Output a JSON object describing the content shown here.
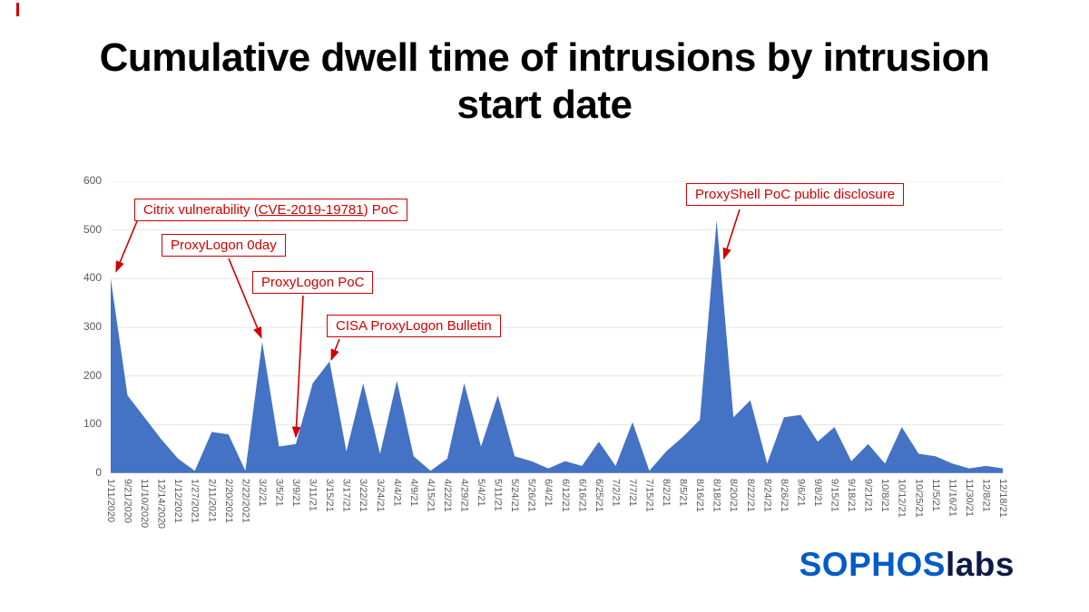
{
  "page": {
    "title": "Cumulative dwell time of intrusions by intrusion start date"
  },
  "logo": {
    "sophos": "SOPHOS",
    "labs": "labs"
  },
  "colors": {
    "accent_red": "#d00000",
    "area_blue": "#4472c4",
    "axis_text": "#595959",
    "sophos_blue": "#005bc8",
    "labs_navy": "#0d1b4a"
  },
  "chart_data": {
    "type": "area",
    "title": "Cumulative dwell time of intrusions by intrusion start date",
    "xlabel": "",
    "ylabel": "",
    "ylim": [
      0,
      600
    ],
    "y_ticks": [
      0,
      100,
      200,
      300,
      400,
      500,
      600
    ],
    "grid": true,
    "legend": "none",
    "series_color": "#4472c4",
    "categories": [
      "1/11/2020",
      "9/21/2020",
      "11/10/2020",
      "12/14/2020",
      "1/12/2021",
      "1/27/2021",
      "2/11/2021",
      "2/20/2021",
      "2/22/2021",
      "3/2/21",
      "3/5/21",
      "3/9/21",
      "3/11/21",
      "3/15/21",
      "3/17/21",
      "3/22/21",
      "3/24/21",
      "4/4/21",
      "4/9/21",
      "4/15/21",
      "4/22/21",
      "4/29/21",
      "5/4/21",
      "5/11/21",
      "5/24/21",
      "5/26/21",
      "6/4/21",
      "6/12/21",
      "6/16/21",
      "6/25/21",
      "7/2/21",
      "7/7/21",
      "7/15/21",
      "8/2/21",
      "8/5/21",
      "8/16/21",
      "8/18/21",
      "8/20/21",
      "8/22/21",
      "8/24/21",
      "8/26/21",
      "9/6/21",
      "9/8/21",
      "9/15/21",
      "9/18/21",
      "9/21/21",
      "10/8/21",
      "10/12/21",
      "10/25/21",
      "11/5/21",
      "11/16/21",
      "11/30/21",
      "12/8/21",
      "12/18/21"
    ],
    "values": [
      400,
      160,
      115,
      70,
      30,
      5,
      85,
      80,
      5,
      270,
      55,
      60,
      185,
      230,
      45,
      185,
      40,
      190,
      35,
      5,
      30,
      185,
      55,
      160,
      35,
      25,
      10,
      25,
      15,
      65,
      15,
      105,
      5,
      45,
      75,
      110,
      520,
      115,
      150,
      20,
      115,
      120,
      65,
      95,
      25,
      60,
      20,
      95,
      40,
      35,
      20,
      10,
      15,
      10
    ],
    "annotations": [
      {
        "id": "citrix",
        "prefix": "Citrix vulnerability (",
        "cve": "CVE-2019-19781",
        "suffix": ") PoC",
        "target_category": "1/11/2020",
        "target_value": 400
      },
      {
        "id": "proxylogon-0day",
        "label": "ProxyLogon 0day",
        "target_category": "3/2/21",
        "target_value": 270
      },
      {
        "id": "proxylogon-poc",
        "label": "ProxyLogon PoC",
        "target_category": "3/9/21",
        "target_value": 60
      },
      {
        "id": "cisa-bulletin",
        "label": "CISA ProxyLogon Bulletin",
        "target_category": "3/15/21",
        "target_value": 230
      },
      {
        "id": "proxyshell",
        "label": "ProxyShell PoC public disclosure",
        "target_category": "8/18/21",
        "target_value": 520
      }
    ]
  }
}
